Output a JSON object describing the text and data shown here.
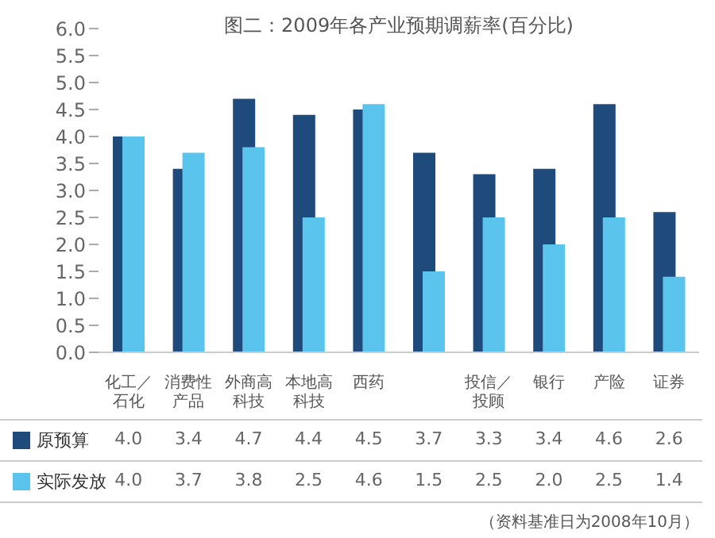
{
  "chart_data": {
    "type": "bar",
    "title": "图二：2009年各产业预期调薪率(百分比)",
    "categories": [
      "化工／石化",
      "消费性产品",
      "外商高科技",
      "本地高科技",
      "西药",
      null,
      "投信／投顾",
      "银行",
      "产险",
      "证券"
    ],
    "series": [
      {
        "name": "原预算",
        "color": "#1f4a7c",
        "values": [
          4.0,
          3.4,
          4.7,
          4.4,
          4.5,
          3.7,
          3.3,
          3.4,
          4.6,
          2.6
        ],
        "value_labels": [
          "4.0",
          "3.4",
          "4.7",
          "4.4",
          "4.5",
          "3.7",
          "3.3",
          "3.4",
          "4.6",
          "2.6"
        ]
      },
      {
        "name": "实际发放",
        "color": "#5bc4ec",
        "values": [
          4.0,
          3.7,
          3.8,
          2.5,
          4.6,
          1.5,
          2.5,
          2.0,
          2.5,
          1.4
        ],
        "value_labels": [
          "4.0",
          "3.7",
          "3.8",
          "2.5",
          "4.6",
          "1.5",
          "2.5",
          "2.0",
          "2.5",
          "1.4"
        ]
      }
    ],
    "ylim": [
      0,
      6
    ],
    "yticks": [
      {
        "value": 0,
        "label": "0.0"
      },
      {
        "value": 0.5,
        "label": "0.5"
      },
      {
        "value": 1,
        "label": "1.0"
      },
      {
        "value": 1.5,
        "label": "1.5"
      },
      {
        "value": 2,
        "label": "2.0"
      },
      {
        "value": 2.5,
        "label": "2.5"
      },
      {
        "value": 3,
        "label": "3.0"
      },
      {
        "value": 3.5,
        "label": "3.5"
      },
      {
        "value": 4,
        "label": "4.0"
      },
      {
        "value": 4.5,
        "label": "4.5"
      },
      {
        "value": 5,
        "label": "5.0"
      },
      {
        "value": 5.5,
        "label": "5.5"
      },
      {
        "value": 6,
        "label": "6.0"
      }
    ],
    "grid": false,
    "legend": "bottom",
    "annotations": [
      "（资料基准日为2008年10月）"
    ]
  }
}
